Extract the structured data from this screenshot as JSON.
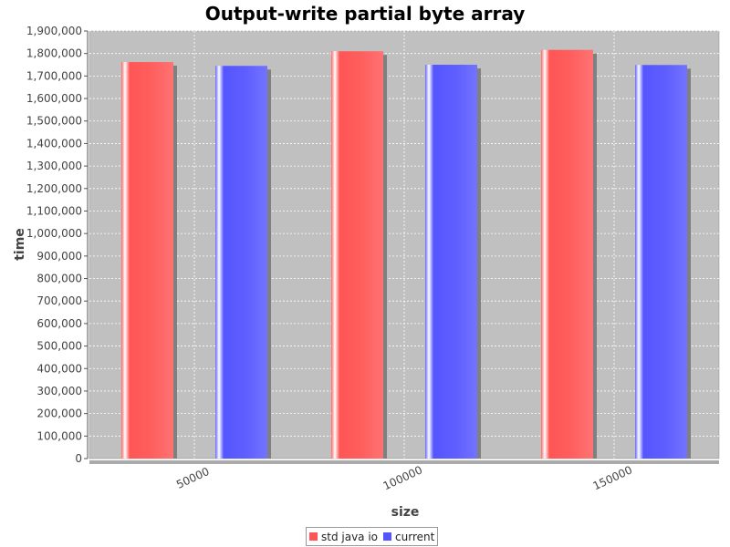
{
  "chart_data": {
    "type": "bar",
    "title": "Output-write partial byte array",
    "xlabel": "size",
    "ylabel": "time",
    "categories": [
      "50000",
      "100000",
      "150000"
    ],
    "series": [
      {
        "name": "std java io",
        "values": [
          1762000,
          1810000,
          1816000
        ],
        "color": "#ff5555"
      },
      {
        "name": "current",
        "values": [
          1745000,
          1750000,
          1749000
        ],
        "color": "#5555ff"
      }
    ],
    "ylim": [
      0,
      1900000
    ],
    "yticks": [
      0,
      100000,
      200000,
      300000,
      400000,
      500000,
      600000,
      700000,
      800000,
      900000,
      1000000,
      1100000,
      1200000,
      1300000,
      1400000,
      1500000,
      1600000,
      1700000,
      1800000,
      1900000
    ],
    "grid": true,
    "legend_position": "bottom-center",
    "plot_background": "#c0c0c0"
  }
}
